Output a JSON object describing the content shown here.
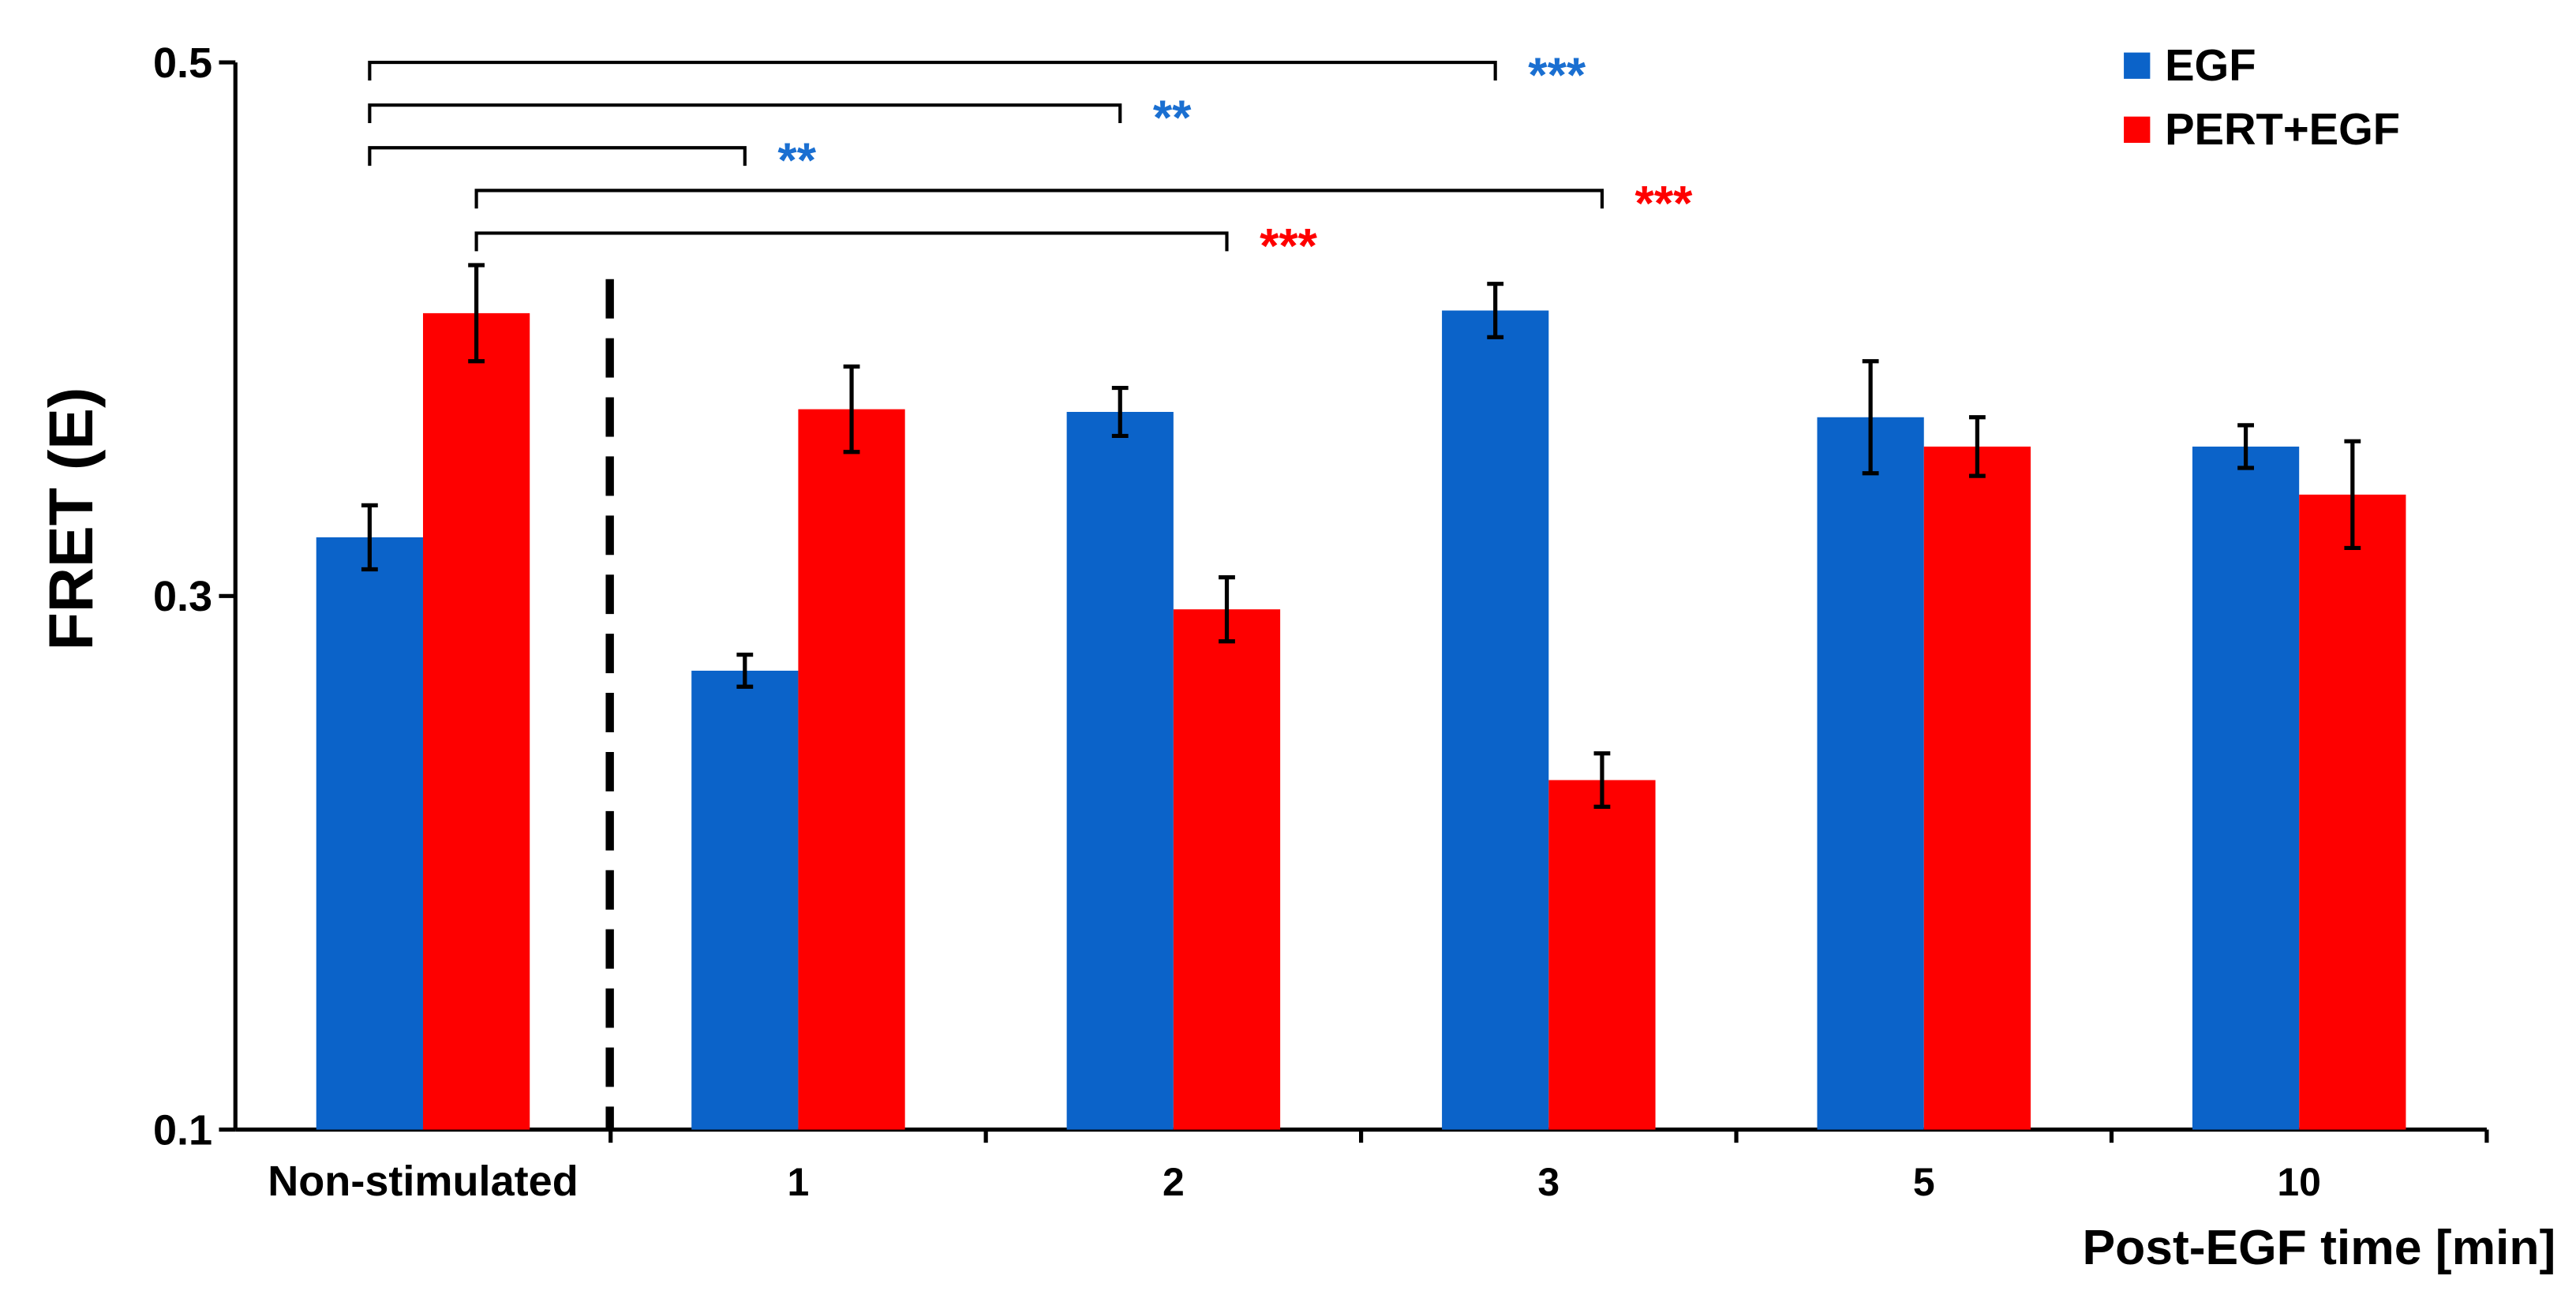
{
  "chart_data": {
    "type": "bar",
    "title": "",
    "xlabel": "Post-EGF time [min]",
    "ylabel": "FRET (E)",
    "ylim": [
      0.1,
      0.5
    ],
    "yticks": [
      "0.1",
      "0.3",
      "0.5"
    ],
    "categories": [
      "Non-stimulated",
      "1",
      "2",
      "3",
      "5",
      "10"
    ],
    "series": [
      {
        "name": "EGF",
        "color": "#0b63c9",
        "values": [
          0.322,
          0.272,
          0.369,
          0.407,
          0.367,
          0.356
        ],
        "errors": [
          0.012,
          0.006,
          0.009,
          0.01,
          0.021,
          0.008
        ]
      },
      {
        "name": "PERT+EGF",
        "color": "#fe0000",
        "values": [
          0.406,
          0.37,
          0.295,
          0.231,
          0.356,
          0.338
        ],
        "errors": [
          0.018,
          0.016,
          0.012,
          0.01,
          0.011,
          0.02
        ]
      }
    ],
    "legend": {
      "position": "top-right"
    },
    "separator": {
      "after_category": 0,
      "style": "dashed"
    },
    "significance": [
      {
        "from": [
          0,
          0
        ],
        "to": [
          3,
          0
        ],
        "label": "***",
        "color": "#1a6fd1"
      },
      {
        "from": [
          0,
          0
        ],
        "to": [
          2,
          0
        ],
        "label": "**",
        "color": "#1a6fd1"
      },
      {
        "from": [
          0,
          0
        ],
        "to": [
          1,
          0
        ],
        "label": "**",
        "color": "#1a6fd1"
      },
      {
        "from": [
          0,
          1
        ],
        "to": [
          3,
          1
        ],
        "label": "***",
        "color": "#fe0000"
      },
      {
        "from": [
          0,
          1
        ],
        "to": [
          2,
          1
        ],
        "label": "***",
        "color": "#fe0000"
      }
    ]
  }
}
